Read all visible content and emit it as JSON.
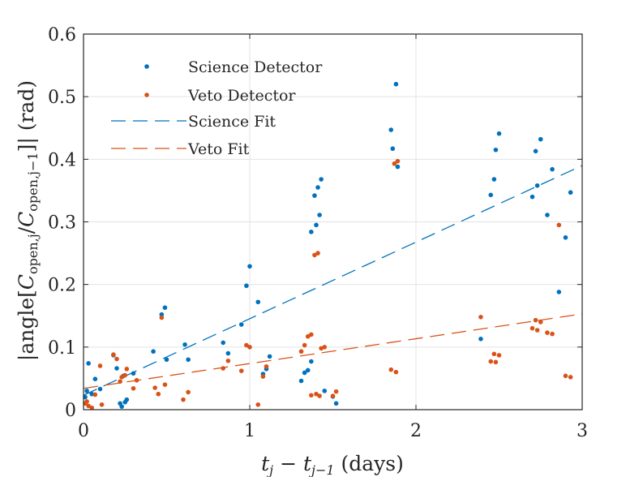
{
  "chart_data": {
    "type": "scatter",
    "xlabel": {
      "main_1": "t",
      "sub_1": "j",
      "minus": " − ",
      "main_2": "t",
      "sub_2": "j−1",
      "units": " (days)"
    },
    "ylabel": {
      "prefix": "|angle[",
      "num_main": "C",
      "num_sub": "open,j",
      "slash": "/",
      "den_main": "C",
      "den_sub": "open,j−1",
      "suffix": "]| (rad)"
    },
    "xlim": [
      0,
      3
    ],
    "ylim": [
      0,
      0.6
    ],
    "xticks": [
      0,
      1,
      2,
      3
    ],
    "xtick_labels": [
      "0",
      "1",
      "2",
      "3"
    ],
    "yticks": [
      0,
      0.1,
      0.2,
      0.3,
      0.4,
      0.5,
      0.6
    ],
    "ytick_labels": [
      "0",
      "0.1",
      "0.2",
      "0.3",
      "0.4",
      "0.5",
      "0.6"
    ],
    "grid": true,
    "legend_position": "top-left",
    "series": [
      {
        "name": "Science Detector",
        "kind": "points",
        "color": "#0072BD",
        "points": [
          [
            0.01,
            0.02
          ],
          [
            0.02,
            0.03
          ],
          [
            0.03,
            0.074
          ],
          [
            0.05,
            0.025
          ],
          [
            0.07,
            0.049
          ],
          [
            0.1,
            0.033
          ],
          [
            0.18,
            0.087
          ],
          [
            0.2,
            0.066
          ],
          [
            0.22,
            0.01
          ],
          [
            0.23,
            0.005
          ],
          [
            0.24,
            0.054
          ],
          [
            0.25,
            0.012
          ],
          [
            0.26,
            0.016
          ],
          [
            0.3,
            0.058
          ],
          [
            0.42,
            0.093
          ],
          [
            0.47,
            0.152
          ],
          [
            0.49,
            0.163
          ],
          [
            0.5,
            0.08
          ],
          [
            0.61,
            0.104
          ],
          [
            0.63,
            0.08
          ],
          [
            0.84,
            0.107
          ],
          [
            0.87,
            0.09
          ],
          [
            0.95,
            0.136
          ],
          [
            0.98,
            0.198
          ],
          [
            1.0,
            0.229
          ],
          [
            1.05,
            0.172
          ],
          [
            1.08,
            0.057
          ],
          [
            1.1,
            0.065
          ],
          [
            1.12,
            0.085
          ],
          [
            1.31,
            0.046
          ],
          [
            1.33,
            0.059
          ],
          [
            1.35,
            0.063
          ],
          [
            1.37,
            0.077
          ],
          [
            1.37,
            0.284
          ],
          [
            1.39,
            0.342
          ],
          [
            1.4,
            0.295
          ],
          [
            1.41,
            0.355
          ],
          [
            1.42,
            0.311
          ],
          [
            1.43,
            0.368
          ],
          [
            1.45,
            0.03
          ],
          [
            1.5,
            0.021
          ],
          [
            1.52,
            0.01
          ],
          [
            1.85,
            0.447
          ],
          [
            1.86,
            0.417
          ],
          [
            1.88,
            0.52
          ],
          [
            1.89,
            0.388
          ],
          [
            2.39,
            0.113
          ],
          [
            2.45,
            0.343
          ],
          [
            2.47,
            0.368
          ],
          [
            2.48,
            0.415
          ],
          [
            2.5,
            0.441
          ],
          [
            2.7,
            0.34
          ],
          [
            2.72,
            0.413
          ],
          [
            2.73,
            0.358
          ],
          [
            2.75,
            0.432
          ],
          [
            2.79,
            0.311
          ],
          [
            2.82,
            0.384
          ],
          [
            2.86,
            0.188
          ],
          [
            2.9,
            0.275
          ],
          [
            2.93,
            0.347
          ]
        ]
      },
      {
        "name": "Veto Detector",
        "kind": "points",
        "color": "#D95319",
        "points": [
          [
            0.01,
            0.01
          ],
          [
            0.02,
            0.013
          ],
          [
            0.03,
            0.006
          ],
          [
            0.05,
            0.003
          ],
          [
            0.07,
            0.024
          ],
          [
            0.1,
            0.07
          ],
          [
            0.11,
            0.008
          ],
          [
            0.18,
            0.088
          ],
          [
            0.2,
            0.081
          ],
          [
            0.22,
            0.045
          ],
          [
            0.23,
            0.052
          ],
          [
            0.25,
            0.055
          ],
          [
            0.26,
            0.065
          ],
          [
            0.3,
            0.034
          ],
          [
            0.32,
            0.047
          ],
          [
            0.43,
            0.035
          ],
          [
            0.45,
            0.025
          ],
          [
            0.47,
            0.147
          ],
          [
            0.49,
            0.04
          ],
          [
            0.6,
            0.016
          ],
          [
            0.63,
            0.028
          ],
          [
            0.84,
            0.066
          ],
          [
            0.87,
            0.078
          ],
          [
            0.95,
            0.062
          ],
          [
            0.98,
            0.103
          ],
          [
            1.0,
            0.1
          ],
          [
            1.05,
            0.008
          ],
          [
            1.08,
            0.053
          ],
          [
            1.1,
            0.069
          ],
          [
            1.31,
            0.093
          ],
          [
            1.33,
            0.103
          ],
          [
            1.35,
            0.117
          ],
          [
            1.37,
            0.12
          ],
          [
            1.37,
            0.023
          ],
          [
            1.39,
            0.247
          ],
          [
            1.4,
            0.025
          ],
          [
            1.41,
            0.25
          ],
          [
            1.42,
            0.022
          ],
          [
            1.43,
            0.098
          ],
          [
            1.45,
            0.1
          ],
          [
            1.5,
            0.022
          ],
          [
            1.52,
            0.029
          ],
          [
            1.85,
            0.064
          ],
          [
            1.88,
            0.06
          ],
          [
            1.87,
            0.393
          ],
          [
            1.89,
            0.397
          ],
          [
            2.39,
            0.148
          ],
          [
            2.45,
            0.077
          ],
          [
            2.47,
            0.089
          ],
          [
            2.48,
            0.076
          ],
          [
            2.5,
            0.087
          ],
          [
            2.7,
            0.13
          ],
          [
            2.72,
            0.143
          ],
          [
            2.73,
            0.127
          ],
          [
            2.75,
            0.14
          ],
          [
            2.79,
            0.123
          ],
          [
            2.82,
            0.121
          ],
          [
            2.86,
            0.295
          ],
          [
            2.9,
            0.054
          ],
          [
            2.93,
            0.052
          ]
        ]
      },
      {
        "name": "Science Fit",
        "kind": "dashed-line",
        "color": "#0072BD",
        "x": [
          0,
          3
        ],
        "y": [
          0.023,
          0.39
        ]
      },
      {
        "name": "Veto Fit",
        "kind": "dashed-line",
        "color": "#D95319",
        "x": [
          0,
          3
        ],
        "y": [
          0.034,
          0.153
        ]
      }
    ]
  }
}
